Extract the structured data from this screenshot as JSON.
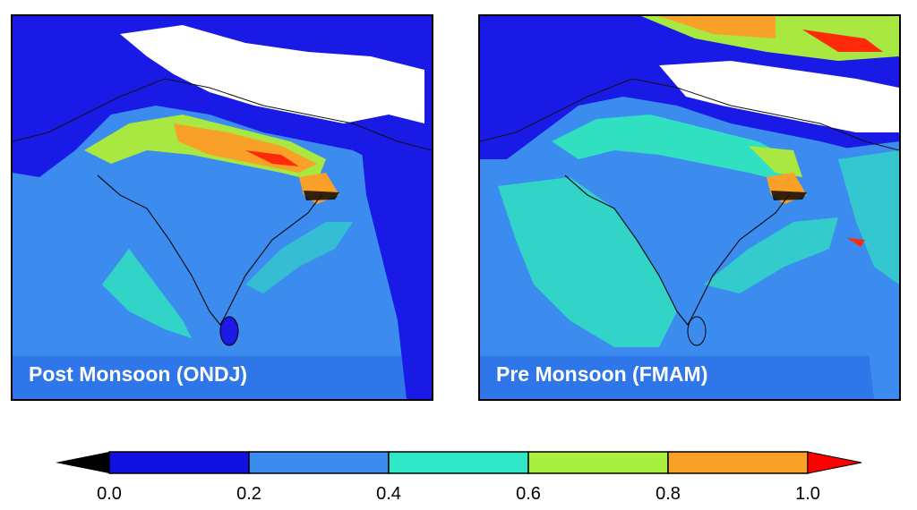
{
  "panels": [
    {
      "label": "Post Monsoon (ONDJ)"
    },
    {
      "label": "Pre Monsoon (FMAM)"
    }
  ],
  "colorbar": {
    "ticks": [
      "0.0",
      "0.2",
      "0.4",
      "0.6",
      "0.8",
      "1.0"
    ],
    "bins": [
      {
        "from": 0.0,
        "to": 0.2,
        "color": "#1010e0"
      },
      {
        "from": 0.2,
        "to": 0.4,
        "color": "#3c8cf0"
      },
      {
        "from": 0.4,
        "to": 0.6,
        "color": "#30e8c8"
      },
      {
        "from": 0.6,
        "to": 0.8,
        "color": "#a8f040"
      },
      {
        "from": 0.8,
        "to": 1.0,
        "color": "#f8a028"
      }
    ],
    "under_color": "#000000",
    "over_color": "#ff0000"
  },
  "colors": {
    "land_low": "#1a1ae6",
    "ocean": "#3c8cf0",
    "plume": "#30e0c0",
    "mid": "#a8e840",
    "high": "#f8a028",
    "peak": "#ff2a0a",
    "missing": "#ffffff"
  }
}
